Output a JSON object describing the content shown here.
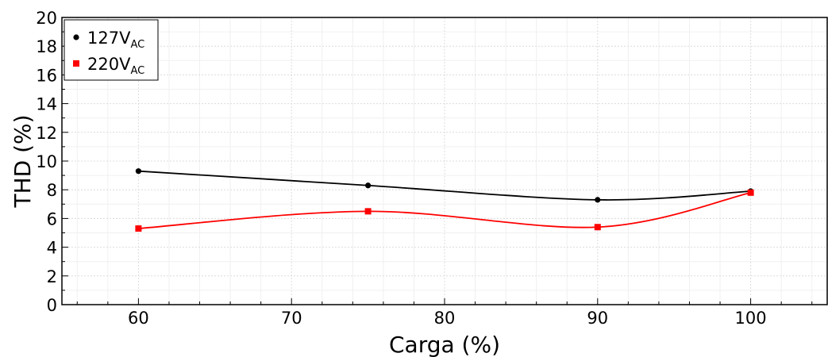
{
  "chart_data": {
    "type": "line",
    "xlabel": "Carga (%)",
    "ylabel": "THD (%)",
    "xlim": [
      55,
      105
    ],
    "ylim": [
      0,
      20
    ],
    "xticks": [
      60,
      70,
      80,
      90,
      100
    ],
    "yticks": [
      0,
      2,
      4,
      6,
      8,
      10,
      12,
      14,
      16,
      18,
      20
    ],
    "grid": true,
    "legend_position": "top-left",
    "series": [
      {
        "name_main": "127V",
        "name_sub": "AC",
        "color": "#000000",
        "marker": "circle",
        "x": [
          60,
          75,
          90,
          100
        ],
        "y": [
          9.3,
          8.3,
          7.3,
          7.9
        ]
      },
      {
        "name_main": "220V",
        "name_sub": "AC",
        "color": "#ff0000",
        "marker": "square",
        "x": [
          60,
          75,
          90,
          100
        ],
        "y": [
          5.3,
          6.5,
          5.4,
          7.8
        ]
      }
    ]
  }
}
